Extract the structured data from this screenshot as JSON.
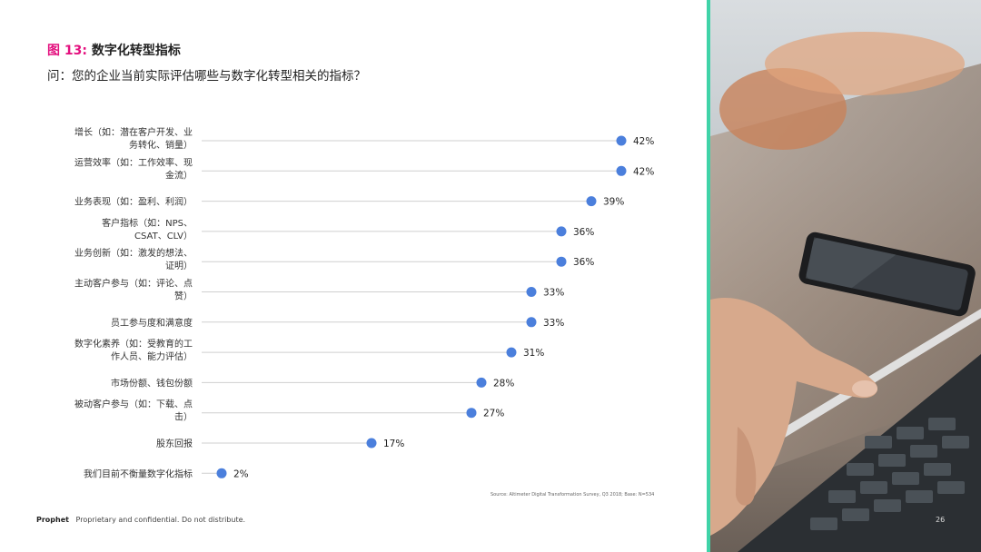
{
  "figure": {
    "number": "图 13:",
    "title": "数字化转型指标",
    "question": "问：您的企业当前实际评估哪些与数字化转型相关的指标？"
  },
  "chart_data": {
    "type": "dot",
    "orientation": "horizontal",
    "xlim": [
      0,
      42
    ],
    "unit": "%",
    "color": "#4b7fdc",
    "categories": [
      [
        "增长（如：潜在客户开发、业",
        "务转化、销量）"
      ],
      [
        "运营效率（如：工作效率、现",
        "金流）"
      ],
      [
        "业务表现（如：盈利、利润）"
      ],
      [
        "客户指标（如：NPS、",
        "CSAT、CLV）"
      ],
      [
        "业务创新（如：激发的想法、",
        "证明）"
      ],
      [
        "主动客户参与（如：评论、点",
        "赞）"
      ],
      [
        "员工参与度和满意度"
      ],
      [
        "数字化素养（如：受教育的工",
        "作人员、能力评估）"
      ],
      [
        "市场份额、钱包份额"
      ],
      [
        "被动客户参与（如：下载、点",
        "击）"
      ],
      [
        "股东回报"
      ],
      [
        "我们目前不衡量数字化指标"
      ]
    ],
    "values": [
      42,
      42,
      39,
      36,
      36,
      33,
      33,
      31,
      28,
      27,
      17,
      2
    ],
    "labels": [
      "42%",
      "42%",
      "39%",
      "36%",
      "36%",
      "33%",
      "33%",
      "31%",
      "28%",
      "27%",
      "17%",
      "2%"
    ]
  },
  "source": "Source: Altimeter Digital Transformation Survey, Q3 2018; Base: N=534",
  "footer": {
    "brand": "Prophet",
    "text": "Proprietary and confidential. Do not distribute.",
    "page": "26"
  },
  "colors": {
    "accent": "#e4117f",
    "divider": "#3fd3a8"
  }
}
